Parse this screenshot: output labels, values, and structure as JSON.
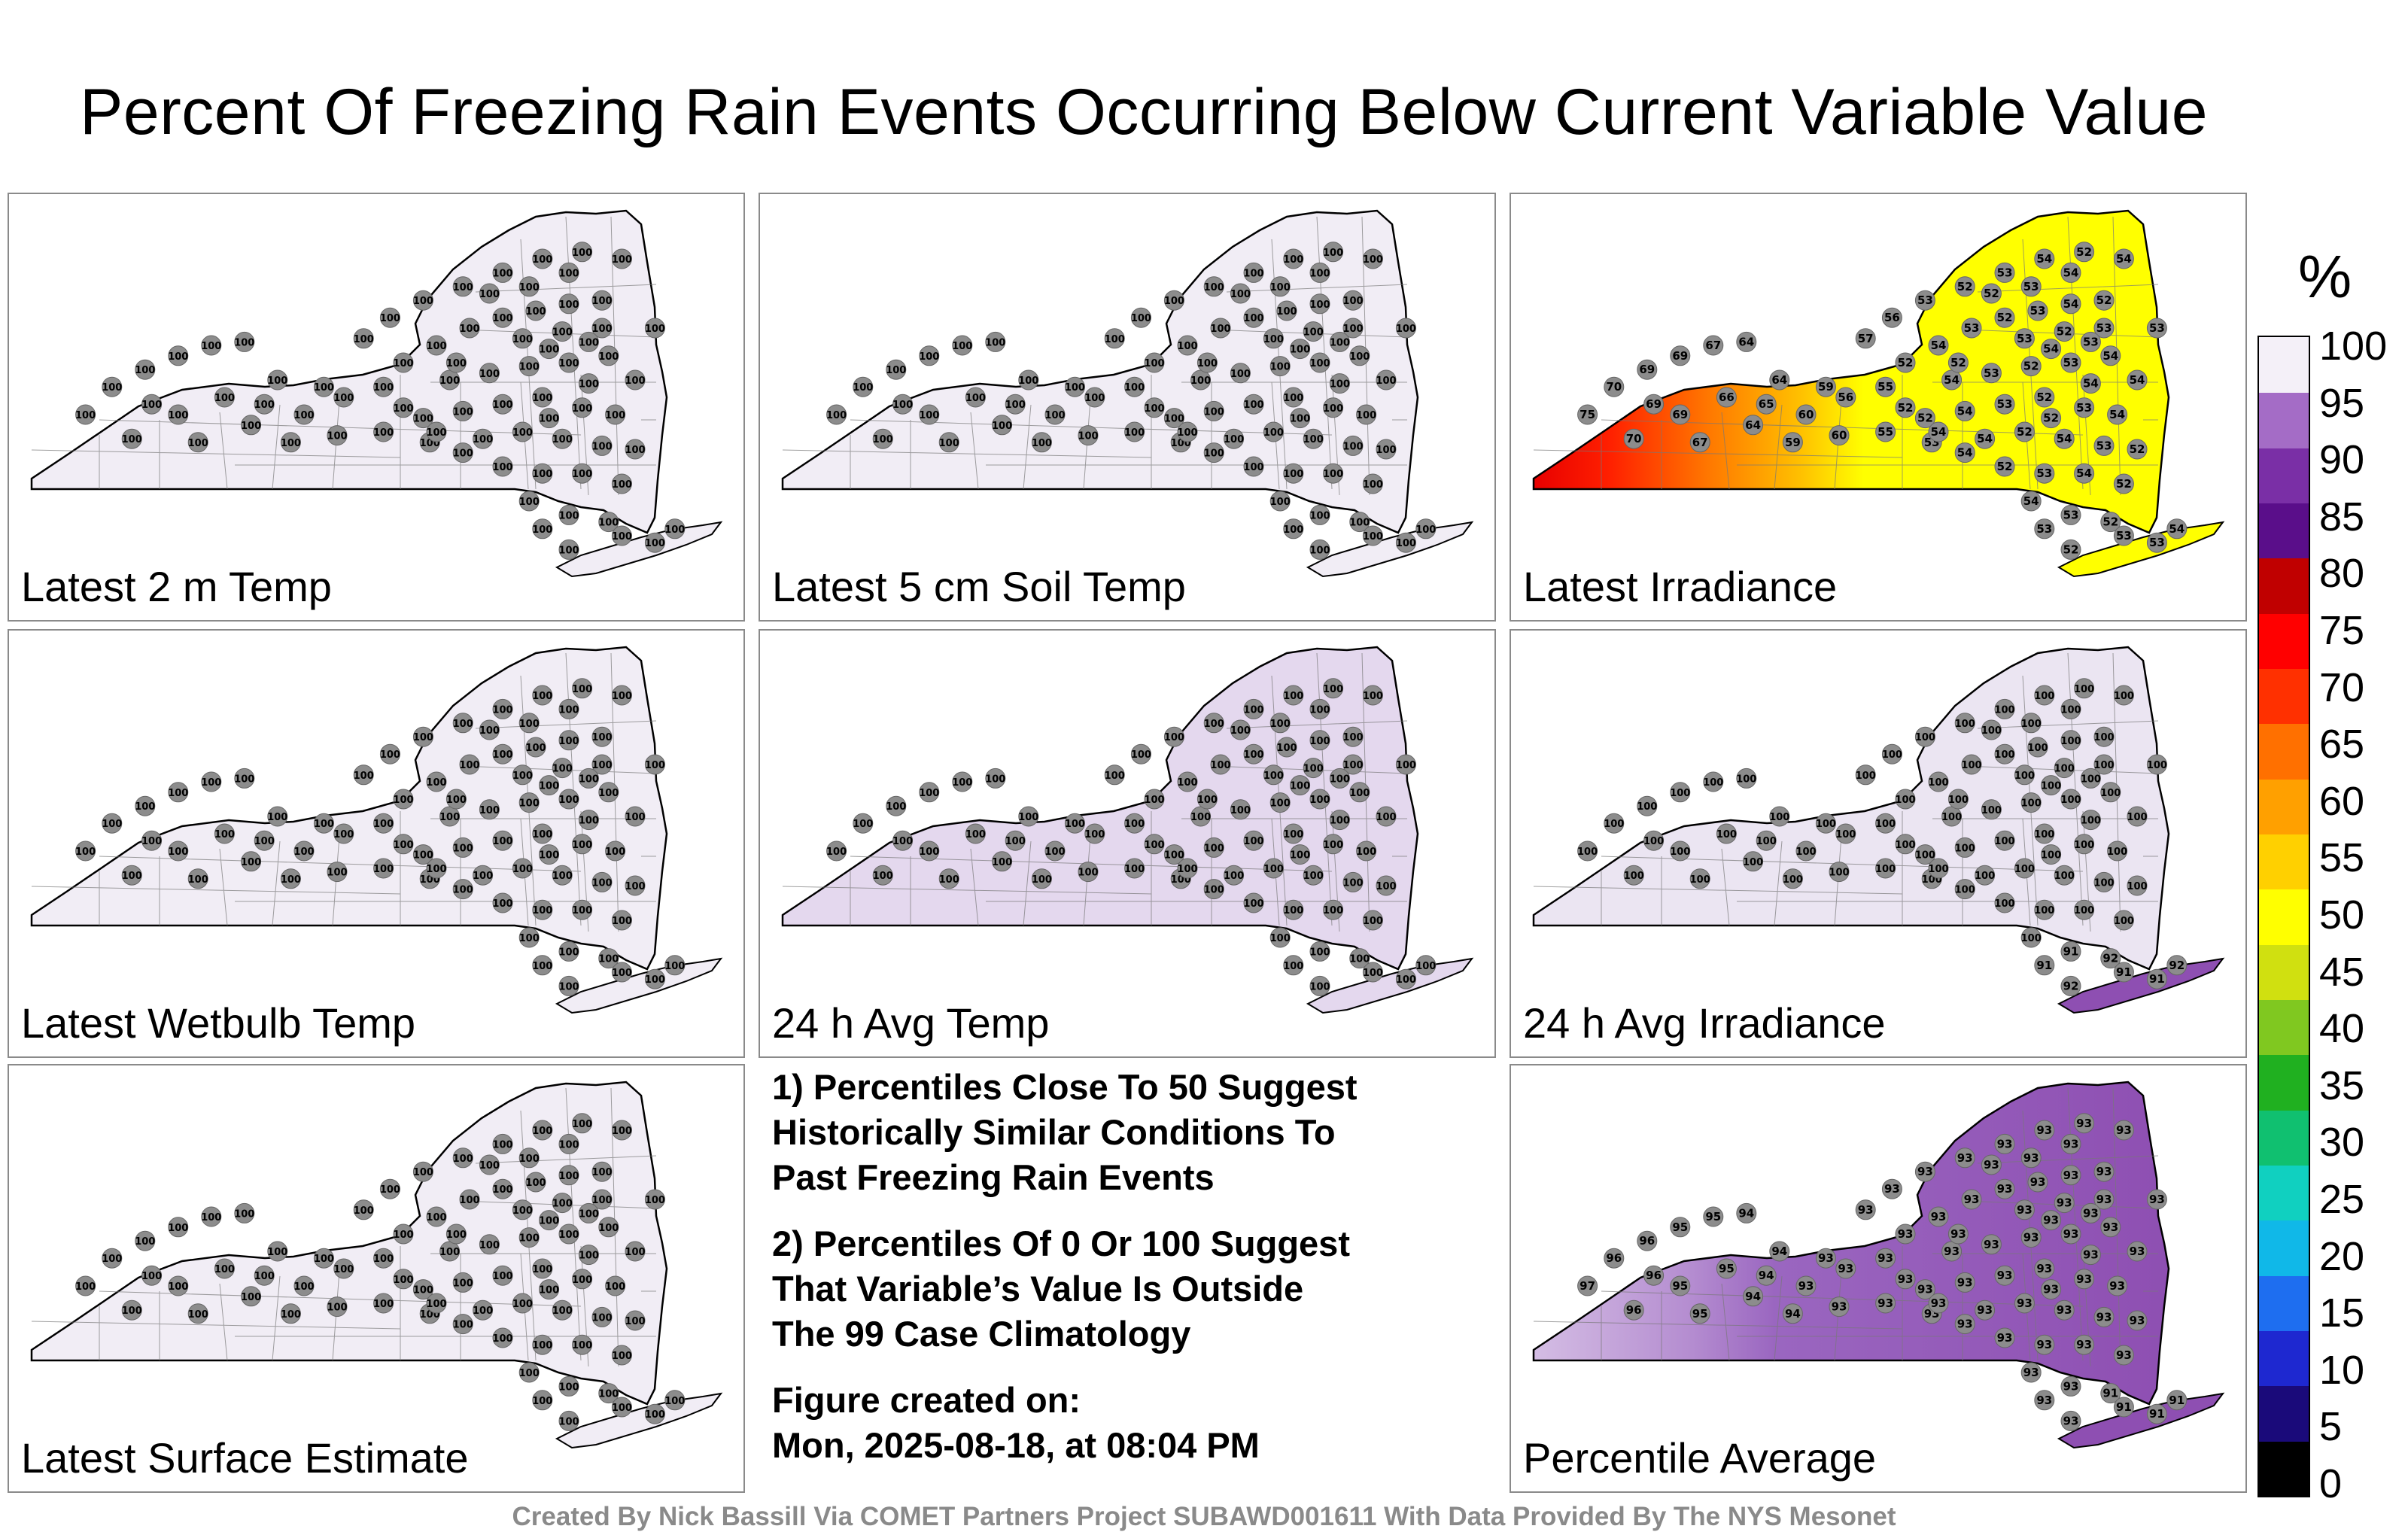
{
  "title": "Percent Of Freezing Rain Events Occurring Below Current Variable Value",
  "panels": [
    {
      "label": "Latest 2 m Temp",
      "mode": "uniform",
      "value": 100,
      "fill": "#f1edf5"
    },
    {
      "label": "Latest 5 cm Soil Temp",
      "mode": "uniform",
      "value": 100,
      "fill": "#f1edf5"
    },
    {
      "label": "Latest Irradiance",
      "mode": "irradiance",
      "fill": "#ffff00"
    },
    {
      "label": "Latest Wetbulb Temp",
      "mode": "uniform",
      "value": 100,
      "fill": "#f1edf5"
    },
    {
      "label": "24 h Avg Temp",
      "mode": "uniform",
      "value": 100,
      "fill": "#e4d8ee"
    },
    {
      "label": "24 h Avg Irradiance",
      "mode": "avgirr",
      "value": 100,
      "fill": "#ebe5f2"
    },
    {
      "label": "Latest Surface Estimate",
      "mode": "uniform",
      "value": 100,
      "fill": "#f1edf5"
    },
    null,
    {
      "label": "Percentile Average",
      "mode": "average",
      "fill": "#8e4fb2"
    }
  ],
  "notes": [
    "1) Percentiles Close To 50 Suggest\nHistorically Similar Conditions To\nPast Freezing Rain Events",
    "2) Percentiles Of 0 Or 100 Suggest\nThat Variable’s Value Is Outside\nThe 99 Case Climatology",
    "Figure created on:\nMon, 2025-08-18, at 08:04 PM"
  ],
  "colorbar": {
    "unit": "%",
    "ticks": [
      "0",
      "5",
      "10",
      "15",
      "20",
      "25",
      "30",
      "35",
      "40",
      "45",
      "50",
      "55",
      "60",
      "65",
      "70",
      "75",
      "80",
      "85",
      "90",
      "95",
      "100"
    ],
    "colors": [
      "#000000",
      "#1a0a7a",
      "#1e28d0",
      "#1e6ef0",
      "#10b8e8",
      "#10d0c0",
      "#10c070",
      "#20b020",
      "#80c820",
      "#d0e010",
      "#ffff00",
      "#ffd000",
      "#ffa000",
      "#ff7000",
      "#ff3000",
      "#ff0000",
      "#c00000",
      "#5a0e8a",
      "#7a2fa6",
      "#a46cc6",
      "#f4f0f8"
    ]
  },
  "credit": "Created By Nick Bassill Via COMET Partners Project SUBAWD001611 With Data Provided By The NYS Mesonet"
}
